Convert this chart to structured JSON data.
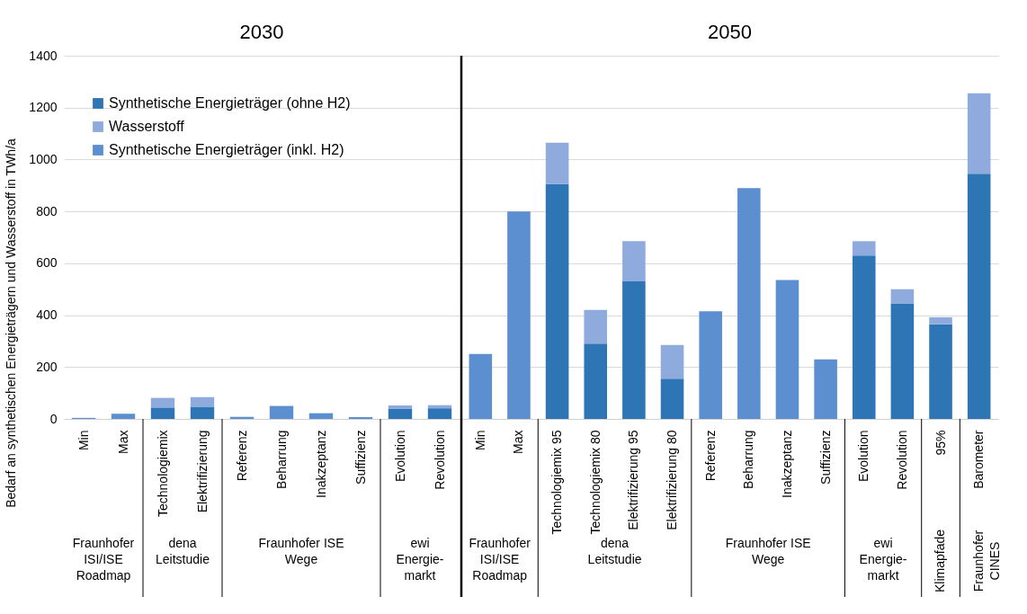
{
  "chart_data": [
    {
      "type": "bar",
      "title": "2030",
      "ylabel": "Bedarf an synthetischen Energieträgern und Wasserstoff in TWh/a",
      "stacked": true,
      "grid": "y",
      "legend": "top left",
      "categories": [
        "Min",
        "Max",
        "Technologiemix",
        "Elektrifizierung",
        "Referenz",
        "Beharrung",
        "Inakzeptanz",
        "Suffizienz",
        "Evolution",
        "Revolution"
      ],
      "ylim": [
        0,
        1400
      ],
      "yticks": [
        0,
        200,
        400,
        600,
        800,
        1000,
        1200,
        1400
      ],
      "series": [
        {
          "name": "Synthetische Energieträger (ohne H2)",
          "color": "#2e75b6",
          "values": [
            null,
            null,
            44,
            47,
            null,
            null,
            null,
            null,
            40,
            41
          ]
        },
        {
          "name": "Wasserstoff",
          "color": "#8faadc",
          "values": [
            null,
            null,
            37,
            37,
            null,
            null,
            null,
            null,
            12,
            12
          ]
        },
        {
          "name": "Synthetische Energieträger (inkl. H2)",
          "color": "#5b8fcf",
          "values": [
            4,
            20,
            null,
            null,
            8,
            50,
            22,
            7,
            null,
            null
          ]
        }
      ],
      "annotations": [
        "Fraunhofer\nISI/ISE\nRoadmap",
        "dena\nLeitstudie",
        "Fraunhofer ISE\nWege",
        "ewi\nEnergie-\nmarkt"
      ]
    },
    {
      "type": "bar",
      "title": "2050",
      "stacked": true,
      "grid": "y",
      "tick_labels": "x",
      "categories": [
        "Min",
        "Max",
        "Technologiemix 95",
        "Technologiemix 80",
        "Elektrifizierung 95",
        "Elektrifizierung 80",
        "Referenz",
        "Beharrung",
        "Inakzeptanz",
        "Suffizienz",
        "Evolution",
        "Revolution",
        "95%",
        "Barometer"
      ],
      "ylim": [
        0,
        1400
      ],
      "yticks": [
        0,
        200,
        400,
        600,
        800,
        1000,
        1200,
        1400
      ],
      "series": [
        {
          "color": "#2e75b6",
          "values": [
            null,
            null,
            905,
            290,
            530,
            155,
            null,
            null,
            null,
            null,
            630,
            445,
            365,
            945
          ]
        },
        {
          "color": "#8faadc",
          "values": [
            null,
            null,
            160,
            130,
            155,
            130,
            null,
            null,
            null,
            null,
            55,
            55,
            27,
            310
          ]
        },
        {
          "color": "#5b8fcf",
          "values": [
            250,
            800,
            null,
            null,
            null,
            null,
            415,
            890,
            535,
            230,
            null,
            null,
            null,
            null
          ]
        }
      ],
      "annotations": [
        "Fraunhofer\nISI/ISE\nRoadmap",
        "dena\nLeitstudie",
        "Fraunhofer ISE\nWege",
        "ewi\nEnergie-\nmarkt",
        "Klimapfade",
        "Fraunhofer\nCINES"
      ]
    }
  ]
}
